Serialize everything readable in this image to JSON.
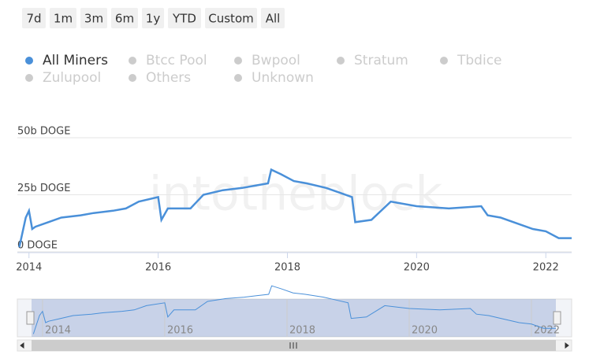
{
  "chart_data": {
    "type": "line",
    "range_buttons": [
      "7d",
      "1m",
      "3m",
      "6m",
      "1y",
      "YTD",
      "Custom",
      "All"
    ],
    "watermark": "intotheblock",
    "x": [
      2013.85,
      2013.95,
      2014.0,
      2014.05,
      2014.1,
      2014.3,
      2014.5,
      2014.8,
      2015.0,
      2015.3,
      2015.5,
      2015.7,
      2016.0,
      2016.05,
      2016.15,
      2016.5,
      2016.6,
      2016.7,
      2017.0,
      2017.3,
      2017.5,
      2017.7,
      2017.75,
      2017.9,
      2018.1,
      2018.3,
      2018.6,
      2018.8,
      2019.0,
      2019.05,
      2019.3,
      2019.6,
      2020.0,
      2020.5,
      2021.0,
      2021.1,
      2021.3,
      2021.5,
      2021.8,
      2022.0,
      2022.2,
      2022.4
    ],
    "series": [
      {
        "name": "All Miners",
        "color": "#4a90d9",
        "values": [
          2,
          15,
          18,
          10,
          11,
          13,
          15,
          16,
          17,
          18,
          19,
          22,
          24,
          14,
          19,
          19,
          22,
          25,
          27,
          28,
          29,
          30,
          36,
          34,
          31,
          30,
          28,
          26,
          24,
          13,
          14,
          22,
          20,
          19,
          20,
          16,
          15,
          13,
          10,
          9,
          6,
          6
        ]
      },
      {
        "name": "Btcc Pool",
        "color": "#cccccc",
        "values": null
      },
      {
        "name": "Bwpool",
        "color": "#cccccc",
        "values": null
      },
      {
        "name": "Stratum",
        "color": "#cccccc",
        "values": null
      },
      {
        "name": "Tbdice",
        "color": "#cccccc",
        "values": null
      },
      {
        "name": "Zulupool",
        "color": "#cccccc",
        "values": null
      },
      {
        "name": "Others",
        "color": "#cccccc",
        "values": null
      },
      {
        "name": "Unknown",
        "color": "#cccccc",
        "values": null
      }
    ],
    "xlim": [
      2013.82,
      2022.4
    ],
    "xticks": [
      2014,
      2016,
      2018,
      2020,
      2022
    ],
    "ylim": [
      0,
      50
    ],
    "yticks": [
      {
        "value": 0,
        "label": "0 DOGE"
      },
      {
        "value": 25,
        "label": "25b DOGE"
      },
      {
        "value": 50,
        "label": "50b DOGE"
      }
    ],
    "grid": true
  }
}
